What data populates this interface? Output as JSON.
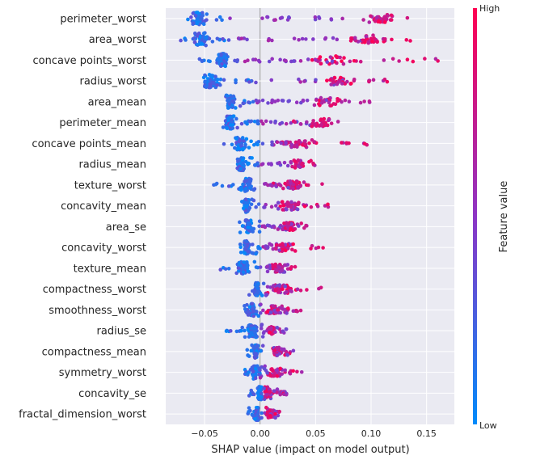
{
  "chart_data": {
    "type": "scatter",
    "subtype": "shap-beeswarm",
    "xlabel": "SHAP value (impact on model output)",
    "xlim": [
      -0.085,
      0.175
    ],
    "xticks": [
      -0.05,
      0.0,
      0.05,
      0.1,
      0.15
    ],
    "xtick_labels": [
      "−0.05",
      "0.00",
      "0.05",
      "0.10",
      "0.15"
    ],
    "grid": true,
    "zero_line": true,
    "colorbar": {
      "label": "Feature value",
      "high_label": "High",
      "low_label": "Low",
      "low_color": "#008bfb",
      "high_color": "#ff0052"
    },
    "features": [
      {
        "name": "perimeter_worst",
        "low": [
          -0.068,
          -0.03
        ],
        "high": [
          0.09,
          0.14
        ],
        "low_center": -0.055,
        "high_center": 0.11
      },
      {
        "name": "area_worst",
        "low": [
          -0.073,
          -0.025
        ],
        "high": [
          0.08,
          0.137
        ],
        "low_center": -0.052,
        "high_center": 0.1
      },
      {
        "name": "concave points_worst",
        "low": [
          -0.055,
          -0.015
        ],
        "high": [
          0.05,
          0.163
        ],
        "low_center": -0.035,
        "high_center": 0.065
      },
      {
        "name": "radius_worst",
        "low": [
          -0.058,
          -0.005
        ],
        "high": [
          0.063,
          0.115
        ],
        "low_center": -0.045,
        "high_center": 0.07
      },
      {
        "name": "area_mean",
        "low": [
          -0.04,
          -0.005
        ],
        "high": [
          0.045,
          0.1
        ],
        "low_center": -0.027,
        "high_center": 0.06
      },
      {
        "name": "perimeter_mean",
        "low": [
          -0.035,
          0.0
        ],
        "high": [
          0.03,
          0.077
        ],
        "low_center": -0.027,
        "high_center": 0.055
      },
      {
        "name": "concave points_mean",
        "low": [
          -0.033,
          0.005
        ],
        "high": [
          0.01,
          0.097
        ],
        "low_center": -0.018,
        "high_center": 0.038
      },
      {
        "name": "radius_mean",
        "low": [
          -0.023,
          0.0
        ],
        "high": [
          0.022,
          0.05
        ],
        "low_center": -0.017,
        "high_center": 0.035
      },
      {
        "name": "texture_worst",
        "low": [
          -0.045,
          0.0
        ],
        "high": [
          0.01,
          0.058
        ],
        "low_center": -0.012,
        "high_center": 0.03
      },
      {
        "name": "concavity_mean",
        "low": [
          -0.018,
          0.0
        ],
        "high": [
          0.015,
          0.063
        ],
        "low_center": -0.012,
        "high_center": 0.027
      },
      {
        "name": "area_se",
        "low": [
          -0.022,
          0.0
        ],
        "high": [
          0.015,
          0.042
        ],
        "low_center": -0.01,
        "high_center": 0.027
      },
      {
        "name": "concavity_worst",
        "low": [
          -0.018,
          0.0
        ],
        "high": [
          0.01,
          0.06
        ],
        "low_center": -0.012,
        "high_center": 0.02
      },
      {
        "name": "texture_mean",
        "low": [
          -0.038,
          0.0
        ],
        "high": [
          0.01,
          0.035
        ],
        "low_center": -0.015,
        "high_center": 0.015
      },
      {
        "name": "compactness_worst",
        "low": [
          -0.01,
          0.005
        ],
        "high": [
          0.01,
          0.058
        ],
        "low_center": -0.003,
        "high_center": 0.02
      },
      {
        "name": "smoothness_worst",
        "low": [
          -0.015,
          0.0
        ],
        "high": [
          0.005,
          0.037
        ],
        "low_center": -0.007,
        "high_center": 0.012
      },
      {
        "name": "radius_se",
        "low": [
          -0.032,
          0.0
        ],
        "high": [
          0.005,
          0.018
        ],
        "low_center": -0.007,
        "high_center": 0.01
      },
      {
        "name": "compactness_mean",
        "low": [
          -0.012,
          0.002
        ],
        "high": [
          0.01,
          0.032
        ],
        "low_center": -0.004,
        "high_center": 0.015
      },
      {
        "name": "symmetry_worst",
        "low": [
          -0.015,
          0.0
        ],
        "high": [
          0.005,
          0.04
        ],
        "low_center": -0.005,
        "high_center": 0.012
      },
      {
        "name": "concavity_se",
        "low": [
          -0.01,
          0.005
        ],
        "high": [
          0.005,
          0.022
        ],
        "low_center": 0.0,
        "high_center": 0.007
      },
      {
        "name": "fractal_dimension_worst",
        "low": [
          -0.012,
          0.003
        ],
        "high": [
          0.005,
          0.018
        ],
        "low_center": -0.003,
        "high_center": 0.009
      }
    ]
  }
}
